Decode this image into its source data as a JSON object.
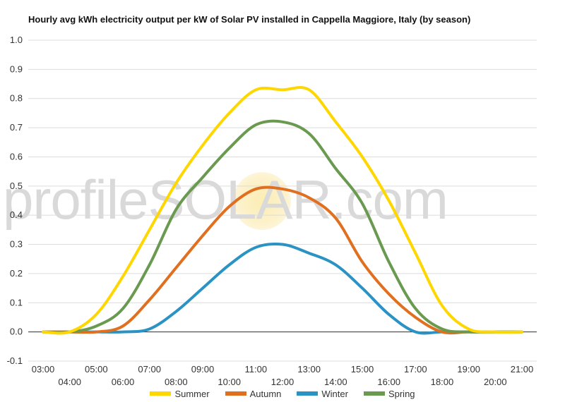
{
  "chart_data": {
    "type": "line",
    "title": "Hourly avg kWh electricity output per kW of Solar PV installed in Cappella Maggiore, Italy (by season)",
    "xlabel": "",
    "ylabel": "",
    "ylim": [
      -0.1,
      1.0
    ],
    "yticks": [
      "1.0",
      "0.9",
      "0.8",
      "0.7",
      "0.6",
      "0.5",
      "0.4",
      "0.3",
      "0.2",
      "0.1",
      "0.0",
      "-0.1"
    ],
    "x": [
      "03:00",
      "04:00",
      "05:00",
      "06:00",
      "07:00",
      "08:00",
      "09:00",
      "10:00",
      "11:00",
      "12:00",
      "13:00",
      "14:00",
      "15:00",
      "16:00",
      "17:00",
      "18:00",
      "19:00",
      "20:00",
      "21:00"
    ],
    "grid": true,
    "legend_position": "bottom",
    "series": [
      {
        "name": "Summer",
        "color": "#ffd700",
        "values": [
          0.0,
          0.0,
          0.06,
          0.19,
          0.35,
          0.51,
          0.64,
          0.75,
          0.83,
          0.83,
          0.83,
          0.72,
          0.6,
          0.45,
          0.27,
          0.09,
          0.01,
          0.0,
          0.0
        ]
      },
      {
        "name": "Autumn",
        "color": "#e07020",
        "values": [
          0.0,
          0.0,
          0.0,
          0.02,
          0.11,
          0.22,
          0.33,
          0.43,
          0.49,
          0.49,
          0.46,
          0.39,
          0.24,
          0.13,
          0.05,
          0.0,
          0.0,
          0.0,
          0.0
        ]
      },
      {
        "name": "Winter",
        "color": "#2a93c4",
        "values": [
          0.0,
          0.0,
          0.0,
          0.0,
          0.01,
          0.07,
          0.15,
          0.23,
          0.29,
          0.3,
          0.27,
          0.23,
          0.15,
          0.06,
          0.0,
          0.0,
          0.0,
          0.0,
          0.0
        ]
      },
      {
        "name": "Spring",
        "color": "#6a9a50",
        "values": [
          0.0,
          0.0,
          0.02,
          0.08,
          0.23,
          0.42,
          0.53,
          0.63,
          0.71,
          0.72,
          0.68,
          0.56,
          0.44,
          0.24,
          0.08,
          0.01,
          0.0,
          0.0,
          0.0
        ]
      }
    ]
  },
  "watermark": {
    "text": "profileSOLAR.com"
  }
}
